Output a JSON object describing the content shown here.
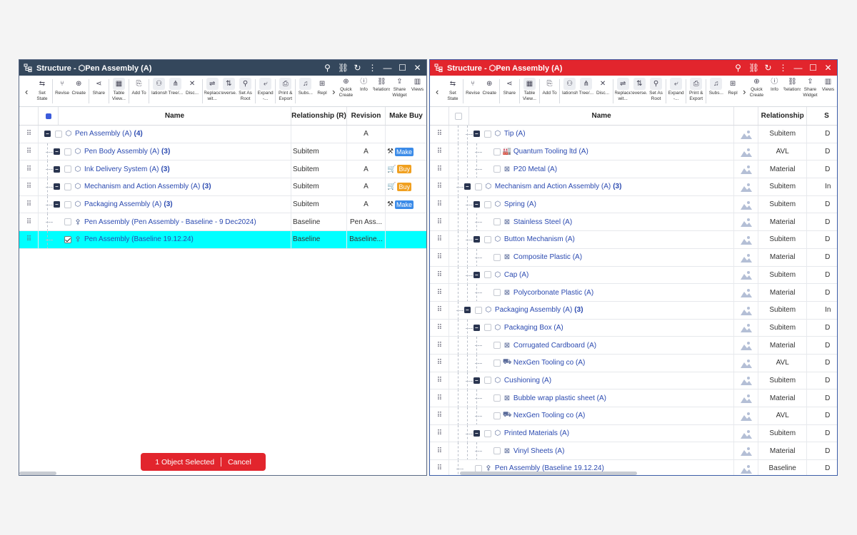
{
  "left": {
    "title": "Structure - ",
    "title_object": "Pen Assembly (A)",
    "toolbar": [
      {
        "icon": "set-state-icon",
        "glyph": "⇆",
        "label": "Set State"
      },
      {
        "icon": "revise-icon",
        "glyph": "⑂",
        "label": "Revise"
      },
      {
        "icon": "create-icon",
        "glyph": "⊕",
        "label": "Create"
      },
      {
        "icon": "share-icon",
        "glyph": "⋖",
        "label": "Share"
      },
      {
        "icon": "table-view-icon",
        "glyph": "▦",
        "label": "Table View..."
      },
      {
        "icon": "add-to-icon",
        "glyph": "⎘",
        "label": "Add To"
      },
      {
        "icon": "relationship-icon",
        "glyph": "⚇",
        "label": "Relationshi..."
      },
      {
        "icon": "tree-icon",
        "glyph": "⋔",
        "label": "Tree/..."
      },
      {
        "icon": "disconnect-icon",
        "glyph": "✕",
        "label": "Disc..."
      },
      {
        "icon": "replace-icon",
        "glyph": "⇌",
        "label": "Replace wit..."
      },
      {
        "icon": "reverse-icon",
        "glyph": "⇅",
        "label": "Reverse..."
      },
      {
        "icon": "set-as-root-icon",
        "glyph": "⚲",
        "label": "Set As Root"
      },
      {
        "icon": "expand-icon",
        "glyph": "⤶",
        "label": "Expand -..."
      },
      {
        "icon": "print-export-icon",
        "glyph": "⎙",
        "label": "Print & Export"
      },
      {
        "icon": "subscribe-icon",
        "glyph": "♫",
        "label": "Subs..."
      },
      {
        "icon": "replace2-icon",
        "glyph": "⊞",
        "label": "Repl"
      }
    ],
    "toolbar_right": [
      {
        "icon": "quick-create-icon",
        "glyph": "⊕",
        "label": "Quick Create"
      },
      {
        "icon": "info-icon",
        "glyph": "ⓘ",
        "label": "Info"
      },
      {
        "icon": "relations-icon",
        "glyph": "⛓",
        "label": "Relations"
      },
      {
        "icon": "share-widget-icon",
        "glyph": "⇪",
        "label": "Share Widget"
      },
      {
        "icon": "views-icon",
        "glyph": "▥",
        "label": "Views"
      }
    ],
    "columns": {
      "name": "Name",
      "relationship": "Relationship (R)",
      "revision": "Revision",
      "make_buy": "Make Buy"
    },
    "rows": [
      {
        "name": "Pen Assembly (A)",
        "count": "(4)",
        "rel": "",
        "rev": "A",
        "mb": "",
        "mbtype": "",
        "level": 0,
        "toggle": true,
        "icon": "⬡",
        "sel": false
      },
      {
        "name": "Pen Body Assembly (A)",
        "count": "(3)",
        "rel": "Subitem",
        "rev": "A",
        "mb": "Make",
        "mbtype": "make",
        "level": 1,
        "toggle": true,
        "icon": "⬡",
        "sel": false
      },
      {
        "name": "Ink Delivery System (A)",
        "count": "(3)",
        "rel": "Subitem",
        "rev": "A",
        "mb": "Buy",
        "mbtype": "buy",
        "level": 1,
        "toggle": true,
        "icon": "⬡",
        "sel": false
      },
      {
        "name": "Mechanism and Action Assembly (A)",
        "count": "(3)",
        "rel": "Subitem",
        "rev": "A",
        "mb": "Buy",
        "mbtype": "buy",
        "level": 1,
        "toggle": true,
        "icon": "⬡",
        "sel": false
      },
      {
        "name": "Packaging Assembly (A)",
        "count": "(3)",
        "rel": "Subitem",
        "rev": "A",
        "mb": "Make",
        "mbtype": "make",
        "level": 1,
        "toggle": true,
        "icon": "⬡",
        "sel": false
      },
      {
        "name": "Pen Assembly (Pen Assembly - Baseline - 9 Dec2024)",
        "count": "",
        "rel": "Baseline",
        "rev": "Pen Ass...",
        "mb": "",
        "mbtype": "",
        "level": 1,
        "toggle": false,
        "icon": "⚴",
        "sel": false
      },
      {
        "name": "Pen Assembly (Baseline 19.12.24)",
        "count": "",
        "rel": "Baseline",
        "rev": "Baseline...",
        "mb": "",
        "mbtype": "",
        "level": 1,
        "toggle": false,
        "icon": "⚴",
        "sel": true
      }
    ],
    "selection": {
      "count_text": "1 Object Selected",
      "cancel": "Cancel"
    }
  },
  "right": {
    "title": "Structure - ",
    "title_object": "Pen Assembly (A)",
    "columns": {
      "name": "Name",
      "relationship": "Relationship",
      "s": "S"
    },
    "rows": [
      {
        "name": "Tip (A)",
        "count": "",
        "rel": "Subitem",
        "s": "D",
        "level": 2,
        "toggle": true,
        "icon": "⬡"
      },
      {
        "name": "Quantum Tooling ltd (A)",
        "count": "",
        "rel": "AVL",
        "s": "D",
        "level": 3,
        "toggle": false,
        "icon": "🏭"
      },
      {
        "name": "P20 Metal (A)",
        "count": "",
        "rel": "Material",
        "s": "D",
        "level": 3,
        "toggle": false,
        "icon": "⊠"
      },
      {
        "name": "Mechanism and Action Assembly (A)",
        "count": "(3)",
        "rel": "Subitem",
        "s": "In",
        "level": 1,
        "toggle": true,
        "icon": "⬡"
      },
      {
        "name": "Spring (A)",
        "count": "",
        "rel": "Subitem",
        "s": "D",
        "level": 2,
        "toggle": true,
        "icon": "⬡"
      },
      {
        "name": "Stainless Steel (A)",
        "count": "",
        "rel": "Material",
        "s": "D",
        "level": 3,
        "toggle": false,
        "icon": "⊠"
      },
      {
        "name": "Button Mechanism (A)",
        "count": "",
        "rel": "Subitem",
        "s": "D",
        "level": 2,
        "toggle": true,
        "icon": "⬡"
      },
      {
        "name": "Composite Plastic (A)",
        "count": "",
        "rel": "Material",
        "s": "D",
        "level": 3,
        "toggle": false,
        "icon": "⊠"
      },
      {
        "name": "Cap (A)",
        "count": "",
        "rel": "Subitem",
        "s": "D",
        "level": 2,
        "toggle": true,
        "icon": "⬡"
      },
      {
        "name": "Polycorbonate Plastic (A)",
        "count": "",
        "rel": "Material",
        "s": "D",
        "level": 3,
        "toggle": false,
        "icon": "⊠"
      },
      {
        "name": "Packaging Assembly (A)",
        "count": "(3)",
        "rel": "Subitem",
        "s": "In",
        "level": 1,
        "toggle": true,
        "icon": "⬡"
      },
      {
        "name": "Packaging Box (A)",
        "count": "",
        "rel": "Subitem",
        "s": "D",
        "level": 2,
        "toggle": true,
        "icon": "⬡"
      },
      {
        "name": "Corrugated Cardboard (A)",
        "count": "",
        "rel": "Material",
        "s": "D",
        "level": 3,
        "toggle": false,
        "icon": "⊠"
      },
      {
        "name": "NexGen Tooling co (A)",
        "count": "",
        "rel": "AVL",
        "s": "D",
        "level": 3,
        "toggle": false,
        "icon": "⛟"
      },
      {
        "name": "Cushioning (A)",
        "count": "",
        "rel": "Subitem",
        "s": "D",
        "level": 2,
        "toggle": true,
        "icon": "⬡"
      },
      {
        "name": "Bubble wrap plastic sheet (A)",
        "count": "",
        "rel": "Material",
        "s": "D",
        "level": 3,
        "toggle": false,
        "icon": "⊠"
      },
      {
        "name": "NexGen Tooling co (A)",
        "count": "",
        "rel": "AVL",
        "s": "D",
        "level": 3,
        "toggle": false,
        "icon": "⛟"
      },
      {
        "name": "Printed Materials (A)",
        "count": "",
        "rel": "Subitem",
        "s": "D",
        "level": 2,
        "toggle": true,
        "icon": "⬡"
      },
      {
        "name": "Vinyl Sheets (A)",
        "count": "",
        "rel": "Material",
        "s": "D",
        "level": 3,
        "toggle": false,
        "icon": "⊠"
      },
      {
        "name": "Pen Assembly (Baseline 19.12.24)",
        "count": "",
        "rel": "Baseline",
        "s": "D",
        "level": 1,
        "toggle": false,
        "icon": "⚴"
      }
    ]
  }
}
